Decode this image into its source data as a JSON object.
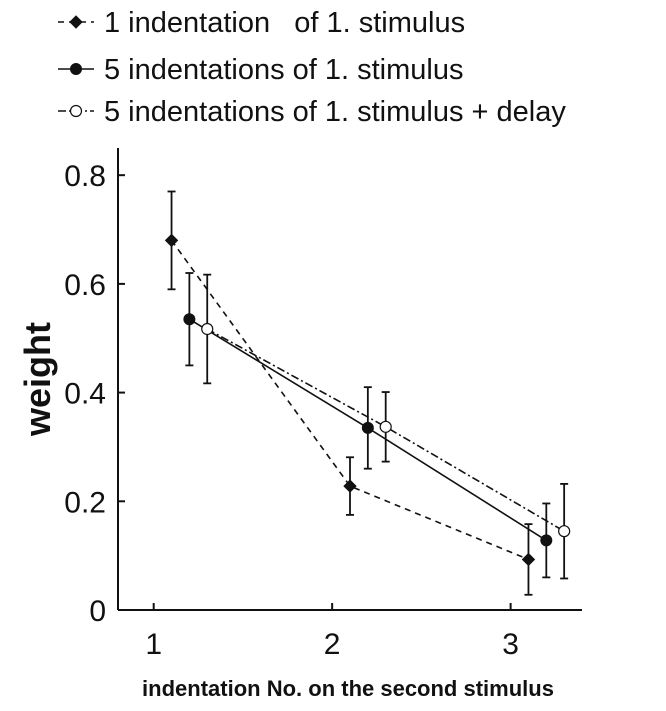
{
  "chart_data": {
    "type": "line",
    "title": "",
    "xlabel": "indentation No. on the second stimulus",
    "ylabel": "weight",
    "xlim": [
      0.8,
      3.4
    ],
    "ylim": [
      0,
      0.85
    ],
    "xticks": [
      1,
      2,
      3
    ],
    "yticks": [
      0,
      0.2,
      0.4,
      0.6,
      0.8
    ],
    "xtick_labels": [
      "1",
      "2",
      "3"
    ],
    "ytick_labels": [
      "0",
      "0.2",
      "0.4",
      "0.6",
      "0.8"
    ],
    "grid": false,
    "legend_position": "top-left, above plot",
    "series": [
      {
        "name": "1 indentation   of 1. stimulus",
        "marker": "filled-diamond",
        "line_style": "dashed",
        "x": [
          1.1,
          2.1,
          3.1
        ],
        "y": [
          0.68,
          0.228,
          0.093
        ],
        "err": [
          0.09,
          0.053,
          0.065
        ]
      },
      {
        "name": "5 indentations of 1. stimulus",
        "marker": "filled-circle",
        "line_style": "solid",
        "x": [
          1.2,
          2.2,
          3.2
        ],
        "y": [
          0.535,
          0.335,
          0.128
        ],
        "err": [
          0.085,
          0.075,
          0.068
        ]
      },
      {
        "name": "5 indentations of 1. stimulus + delay",
        "marker": "open-circle",
        "line_style": "dashdot",
        "x": [
          1.3,
          2.3,
          3.3
        ],
        "y": [
          0.517,
          0.337,
          0.145
        ],
        "err": [
          0.1,
          0.064,
          0.087
        ]
      }
    ]
  }
}
